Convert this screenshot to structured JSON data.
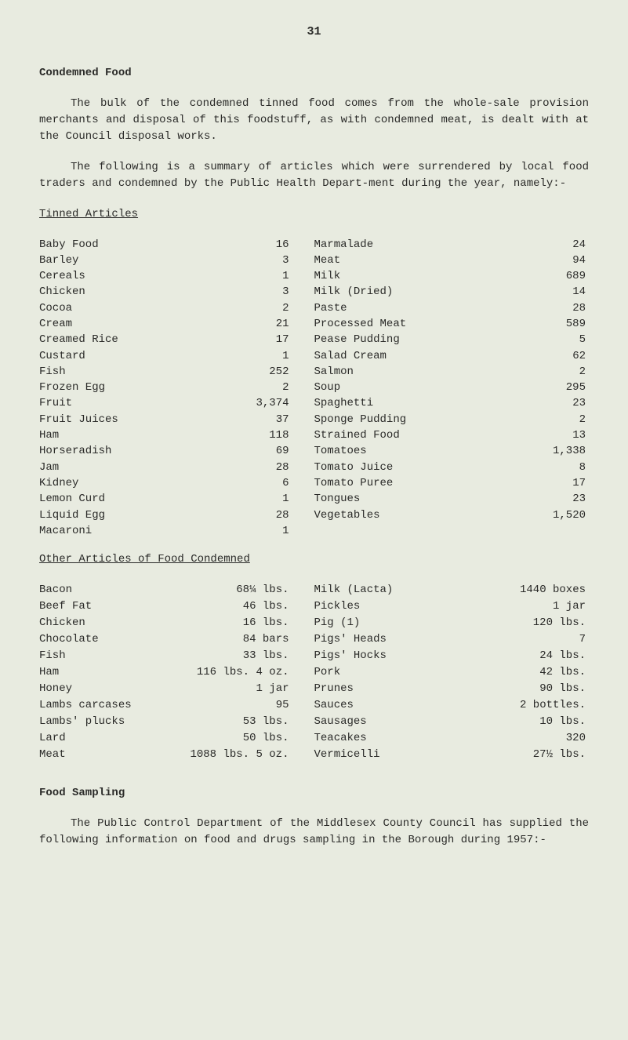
{
  "page_number": "31",
  "section1": {
    "heading": "Condemned Food",
    "paragraph1": "The bulk of the condemned tinned food comes from the whole-sale provision merchants and disposal of this foodstuff, as with condemned meat, is dealt with at the Council disposal works.",
    "paragraph2": "The following is a summary of articles which were surrendered by local food traders and condemned by the Public Health Depart-ment during the year, namely:-"
  },
  "tinned_heading": "Tinned Articles",
  "tinned_left": [
    {
      "label": "Baby Food",
      "value": "16"
    },
    {
      "label": "Barley",
      "value": "3"
    },
    {
      "label": "Cereals",
      "value": "1"
    },
    {
      "label": "Chicken",
      "value": "3"
    },
    {
      "label": "Cocoa",
      "value": "2"
    },
    {
      "label": "Cream",
      "value": "21"
    },
    {
      "label": "Creamed Rice",
      "value": "17"
    },
    {
      "label": "Custard",
      "value": "1"
    },
    {
      "label": "Fish",
      "value": "252"
    },
    {
      "label": "Frozen Egg",
      "value": "2"
    },
    {
      "label": "Fruit",
      "value": "3,374"
    },
    {
      "label": "Fruit Juices",
      "value": "37"
    },
    {
      "label": "Ham",
      "value": "118"
    },
    {
      "label": "Horseradish",
      "value": "69"
    },
    {
      "label": "Jam",
      "value": "28"
    },
    {
      "label": "Kidney",
      "value": "6"
    },
    {
      "label": "Lemon Curd",
      "value": "1"
    },
    {
      "label": "Liquid Egg",
      "value": "28"
    },
    {
      "label": "Macaroni",
      "value": "1"
    }
  ],
  "tinned_right": [
    {
      "label": "Marmalade",
      "value": "24"
    },
    {
      "label": "Meat",
      "value": "94"
    },
    {
      "label": "Milk",
      "value": "689"
    },
    {
      "label": "Milk (Dried)",
      "value": "14"
    },
    {
      "label": "Paste",
      "value": "28"
    },
    {
      "label": "Processed Meat",
      "value": "589"
    },
    {
      "label": "Pease Pudding",
      "value": "5"
    },
    {
      "label": "Salad Cream",
      "value": "62"
    },
    {
      "label": "Salmon",
      "value": "2"
    },
    {
      "label": "Soup",
      "value": "295"
    },
    {
      "label": "Spaghetti",
      "value": "23"
    },
    {
      "label": "Sponge Pudding",
      "value": "2"
    },
    {
      "label": "Strained Food",
      "value": "13"
    },
    {
      "label": "Tomatoes",
      "value": "1,338"
    },
    {
      "label": "Tomato Juice",
      "value": "8"
    },
    {
      "label": "Tomato Puree",
      "value": "17"
    },
    {
      "label": "Tongues",
      "value": "23"
    },
    {
      "label": "Vegetables",
      "value": "1,520"
    }
  ],
  "other_heading": "Other Articles of Food Condemned",
  "other_left": [
    {
      "label": "Bacon",
      "value": "68¼ lbs."
    },
    {
      "label": "Beef Fat",
      "value": "46 lbs."
    },
    {
      "label": "Chicken",
      "value": "16 lbs."
    },
    {
      "label": "Chocolate",
      "value": "84 bars"
    },
    {
      "label": "Fish",
      "value": "33 lbs."
    },
    {
      "label": "Ham",
      "value": "116 lbs. 4 oz."
    },
    {
      "label": "Honey",
      "value": "1 jar"
    },
    {
      "label": "Lambs carcases",
      "value": "95"
    },
    {
      "label": "Lambs' plucks",
      "value": "53 lbs."
    },
    {
      "label": "Lard",
      "value": "50 lbs."
    },
    {
      "label": "Meat",
      "value": "1088 lbs. 5 oz."
    }
  ],
  "other_right": [
    {
      "label": "Milk (Lacta)",
      "value": "1440 boxes"
    },
    {
      "label": "Pickles",
      "value": "1 jar"
    },
    {
      "label": "Pig (1)",
      "value": "120 lbs."
    },
    {
      "label": "Pigs' Heads",
      "value": "7"
    },
    {
      "label": "Pigs' Hocks",
      "value": "24 lbs."
    },
    {
      "label": "Pork",
      "value": "42 lbs."
    },
    {
      "label": "Prunes",
      "value": "90 lbs."
    },
    {
      "label": "Sauces",
      "value": "2 bottles."
    },
    {
      "label": "Sausages",
      "value": "10 lbs."
    },
    {
      "label": "Teacakes",
      "value": "320"
    },
    {
      "label": "Vermicelli",
      "value": "27½ lbs."
    }
  ],
  "food_sampling": {
    "heading": "Food Sampling",
    "paragraph": "The Public Control Department of the Middlesex County Council has supplied the following information on food and drugs sampling in the Borough during 1957:-"
  }
}
